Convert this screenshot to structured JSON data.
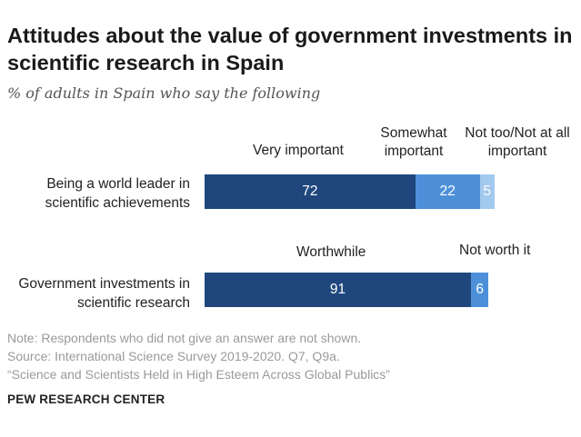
{
  "title": "Attitudes about the value of government investments in scientific research in Spain",
  "subtitle": "% of adults in Spain who say the following",
  "chart_data": {
    "type": "bar",
    "orientation": "horizontal",
    "stacked": true,
    "groups": [
      {
        "label": "Being a world leader in scientific achievements",
        "segments": [
          {
            "name": "Very important",
            "value": 72,
            "color": "#1f477d"
          },
          {
            "name": "Somewhat important",
            "value": 22,
            "color": "#4d90d9"
          },
          {
            "name": "Not too/Not at all important",
            "value": 5,
            "color": "#a3c9ef"
          }
        ]
      },
      {
        "label": "Government investments in scientific research",
        "segments": [
          {
            "name": "Worthwhile",
            "value": 91,
            "color": "#1f477d"
          },
          {
            "name": "Not worth it",
            "value": 6,
            "color": "#4d90d9"
          }
        ]
      }
    ],
    "xlim": [
      0,
      100
    ]
  },
  "legend_labels": {
    "very_important": "Very important",
    "somewhat_important": "Somewhat important",
    "not_too_important": "Not too/Not at all important",
    "worthwhile": "Worthwhile",
    "not_worth_it": "Not worth it"
  },
  "notes": {
    "note": "Note: Respondents who did not give an answer are not shown.",
    "source": "Source: International Science Survey 2019-2020. Q7, Q9a.",
    "report": "“Science and Scientists Held in High Esteem Across Global Publics”"
  },
  "brand": "PEW RESEARCH CENTER"
}
